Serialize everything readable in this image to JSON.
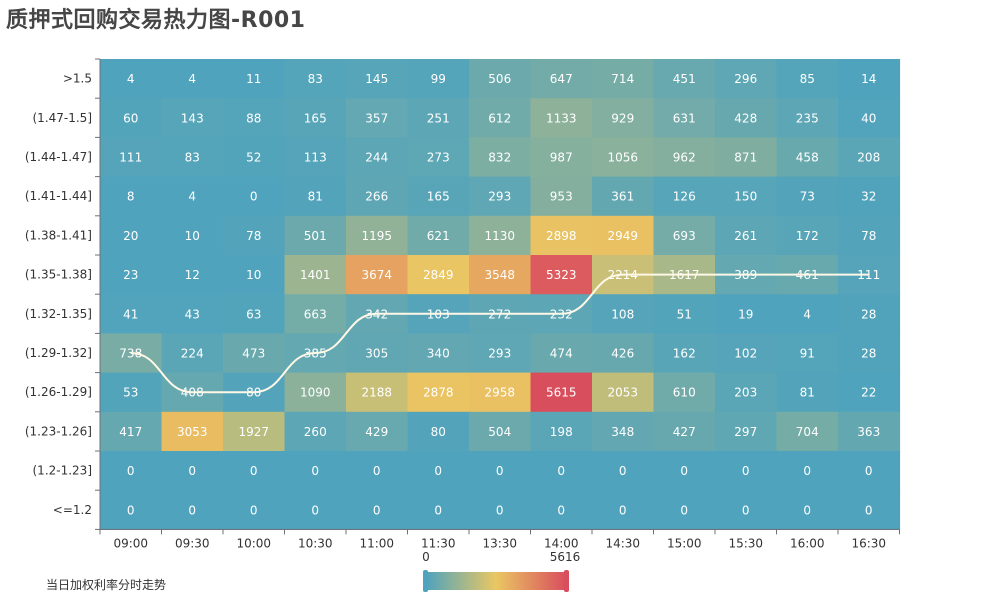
{
  "title": "质押式回购交易热力图-R001",
  "legend_label": "当日加权利率分时走势",
  "chart_data": {
    "type": "heatmap",
    "x_categories": [
      "09:00",
      "09:30",
      "10:00",
      "10:30",
      "11:00",
      "11:30",
      "13:30",
      "14:00",
      "14:30",
      "15:00",
      "15:30",
      "16:00",
      "16:30"
    ],
    "y_categories": [
      ">1.5",
      "(1.47-1.5]",
      "(1.44-1.47]",
      "(1.41-1.44]",
      "(1.38-1.41]",
      "(1.35-1.38]",
      "(1.32-1.35]",
      "(1.29-1.32]",
      "(1.26-1.29]",
      "(1.23-1.26]",
      "(1.2-1.23]",
      "<=1.2"
    ],
    "values": [
      [
        4,
        4,
        11,
        83,
        145,
        99,
        506,
        647,
        714,
        451,
        296,
        85,
        14
      ],
      [
        60,
        143,
        88,
        165,
        357,
        251,
        612,
        1133,
        929,
        631,
        428,
        235,
        40
      ],
      [
        111,
        83,
        52,
        113,
        244,
        273,
        832,
        987,
        1056,
        962,
        871,
        458,
        208
      ],
      [
        8,
        4,
        0,
        81,
        266,
        165,
        293,
        953,
        361,
        126,
        150,
        73,
        32
      ],
      [
        20,
        10,
        78,
        501,
        1195,
        621,
        1130,
        2898,
        2949,
        693,
        261,
        172,
        78
      ],
      [
        23,
        12,
        10,
        1401,
        3674,
        2849,
        3548,
        5323,
        2214,
        1617,
        389,
        461,
        111
      ],
      [
        41,
        43,
        63,
        663,
        342,
        103,
        272,
        232,
        108,
        51,
        19,
        4,
        28
      ],
      [
        738,
        224,
        473,
        385,
        305,
        340,
        293,
        474,
        426,
        162,
        102,
        91,
        28
      ],
      [
        53,
        408,
        80,
        1090,
        2188,
        2878,
        2958,
        5615,
        2053,
        610,
        203,
        81,
        22
      ],
      [
        417,
        3053,
        1927,
        260,
        429,
        80,
        504,
        198,
        348,
        427,
        297,
        704,
        363
      ],
      [
        0,
        0,
        0,
        0,
        0,
        0,
        0,
        0,
        0,
        0,
        0,
        0,
        0
      ],
      [
        0,
        0,
        0,
        0,
        0,
        0,
        0,
        0,
        0,
        0,
        0,
        0,
        0
      ]
    ],
    "visual_map": {
      "min": 0,
      "max": 5616,
      "colors": [
        "#4fa3bd",
        "#eac763",
        "#d94e5d"
      ]
    },
    "trend_line": {
      "name": "当日加权利率分时走势",
      "y_index": [
        7,
        8,
        8,
        7,
        6,
        6,
        6,
        6,
        5,
        5,
        5,
        5,
        5
      ],
      "color": "#fff8e6"
    }
  }
}
